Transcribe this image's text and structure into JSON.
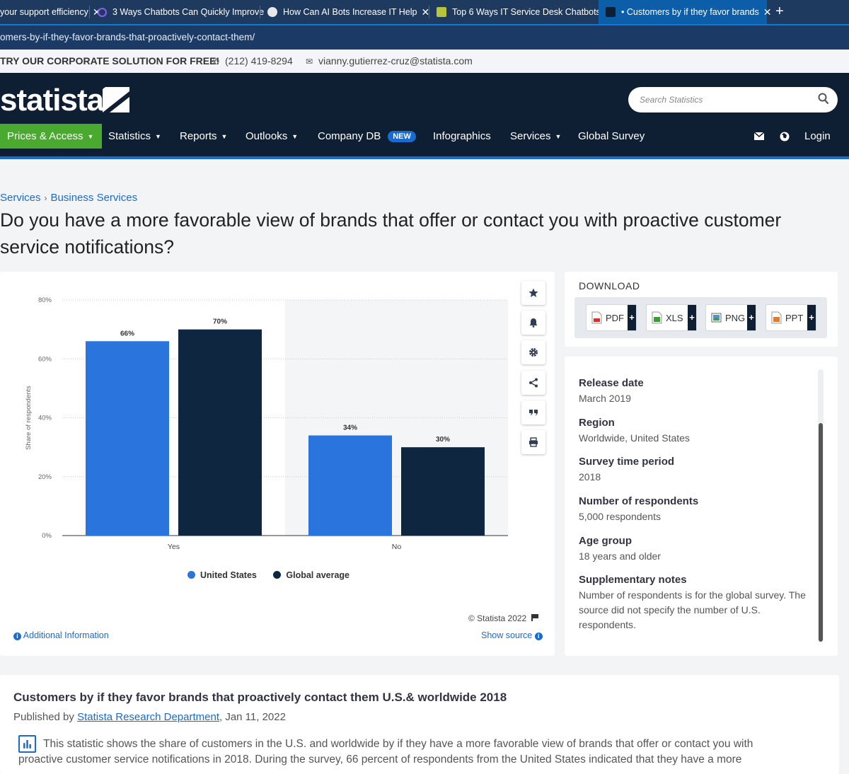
{
  "browser": {
    "tabs": [
      {
        "label": "your support efficiency"
      },
      {
        "label": "3 Ways Chatbots Can Quickly Improve"
      },
      {
        "label": "How Can AI Bots Increase IT Help"
      },
      {
        "label": "Top 6 Ways IT Service Desk Chatbots"
      },
      {
        "label": "• Customers by if they favor brands"
      }
    ],
    "url": "omers-by-if-they-favor-brands-that-proactively-contact-them/"
  },
  "contact": {
    "try": "TRY OUR CORPORATE SOLUTION FOR FREE!",
    "phone": "(212) 419-8294",
    "email": "vianny.gutierrez-cruz@statista.com"
  },
  "header": {
    "logo": "statista",
    "search_placeholder": "Search Statistics",
    "nav": [
      {
        "label": "Prices & Access"
      },
      {
        "label": "Statistics"
      },
      {
        "label": "Reports"
      },
      {
        "label": "Outlooks"
      },
      {
        "label": "Company DB",
        "badge": "NEW"
      },
      {
        "label": "Infographics"
      },
      {
        "label": "Services"
      },
      {
        "label": "Global Survey"
      }
    ],
    "login": "Login"
  },
  "breadcrumb": [
    "Services",
    "Business Services"
  ],
  "page_title": "Do you have a more favorable view of brands that offer or contact you with proactive customer service notifications?",
  "chart_data": {
    "type": "bar",
    "categories": [
      "Yes",
      "No"
    ],
    "series": [
      {
        "name": "United States",
        "values": [
          66,
          34
        ],
        "color": "#2a75dd"
      },
      {
        "name": "Global average",
        "values": [
          70,
          30
        ],
        "color": "#0f2640"
      }
    ],
    "ylabel": "Share of respondents",
    "ylim": [
      0,
      80
    ],
    "yticks": [
      "0%",
      "20%",
      "40%",
      "60%",
      "80%"
    ],
    "value_suffix": "%",
    "grid": true,
    "copyright": "© Statista 2022"
  },
  "chart_links": {
    "additional_info": "Additional Information",
    "show_source": "Show source"
  },
  "download": {
    "label": "DOWNLOAD",
    "formats": [
      "PDF",
      "XLS",
      "PNG",
      "PPT"
    ]
  },
  "metadata": [
    {
      "key": "Release date",
      "value": "March 2019"
    },
    {
      "key": "Region",
      "value": "Worldwide, United States"
    },
    {
      "key": "Survey time period",
      "value": "2018"
    },
    {
      "key": "Number of respondents",
      "value": "5,000 respondents"
    },
    {
      "key": "Age group",
      "value": "18 years and older"
    },
    {
      "key": "Supplementary notes",
      "value": "Number of respondents is for the global survey. The source did not specify the number of U.S. respondents."
    }
  ],
  "description": {
    "title": "Customers by if they favor brands that proactively contact them U.S.& worldwide 2018",
    "published_prefix": "Published by ",
    "publisher": "Statista Research Department",
    "date": ", Jan 11, 2022",
    "text": "This statistic shows the share of customers in the U.S. and worldwide by if they have a more favorable view of brands that offer or contact you with proactive customer service notifications in 2018. During the survey, 66 percent of respondents from the United States indicated that they have a more"
  }
}
